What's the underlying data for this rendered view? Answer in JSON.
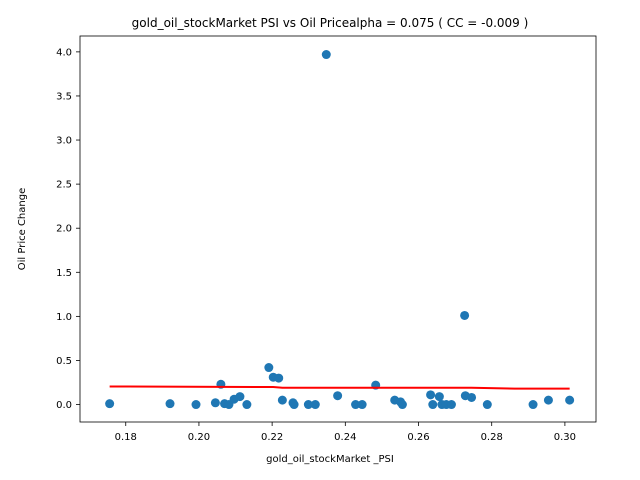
{
  "chart_data": {
    "type": "scatter",
    "title": "gold_oil_stockMarket  PSI vs Oil Pricealpha = 0.075 ( CC = -0.009 )",
    "xlabel": "gold_oil_stockMarket _PSI",
    "ylabel": "Oil Price Change",
    "xlim": [
      0.1675,
      0.3085
    ],
    "ylim": [
      -0.198,
      4.18
    ],
    "xticks": [
      "0.18",
      "0.20",
      "0.22",
      "0.24",
      "0.26",
      "0.28",
      "0.30"
    ],
    "xtick_values": [
      0.18,
      0.2,
      0.22,
      0.24,
      0.26,
      0.28,
      0.3
    ],
    "yticks": [
      "0.0",
      "0.5",
      "1.0",
      "1.5",
      "2.0",
      "2.5",
      "3.0",
      "3.5",
      "4.0"
    ],
    "ytick_values": [
      0.0,
      0.5,
      1.0,
      1.5,
      2.0,
      2.5,
      3.0,
      3.5,
      4.0
    ],
    "grid": false,
    "colors": {
      "points": "#1f77b4",
      "fit_line": "#ff0000"
    },
    "series": [
      {
        "points": [
          [
            0.1756,
            0.01
          ],
          [
            0.1921,
            0.01
          ],
          [
            0.1992,
            0.0
          ],
          [
            0.2045,
            0.02
          ],
          [
            0.206,
            0.23
          ],
          [
            0.207,
            0.01
          ],
          [
            0.2082,
            0.0
          ],
          [
            0.2096,
            0.06
          ],
          [
            0.2112,
            0.09
          ],
          [
            0.2131,
            0.0
          ],
          [
            0.2191,
            0.42
          ],
          [
            0.2203,
            0.31
          ],
          [
            0.2218,
            0.3
          ],
          [
            0.2228,
            0.05
          ],
          [
            0.2257,
            0.02
          ],
          [
            0.226,
            0.0
          ],
          [
            0.2299,
            0.0
          ],
          [
            0.2318,
            0.0
          ],
          [
            0.2348,
            3.97
          ],
          [
            0.2379,
            0.1
          ],
          [
            0.2428,
            0.0
          ],
          [
            0.2446,
            0.0
          ],
          [
            0.2483,
            0.22
          ],
          [
            0.2535,
            0.05
          ],
          [
            0.2551,
            0.03
          ],
          [
            0.2556,
            0.0
          ],
          [
            0.2633,
            0.11
          ],
          [
            0.2639,
            0.0
          ],
          [
            0.2657,
            0.09
          ],
          [
            0.2664,
            0.0
          ],
          [
            0.2676,
            0.0
          ],
          [
            0.269,
            0.0
          ],
          [
            0.2726,
            1.01
          ],
          [
            0.2728,
            0.1
          ],
          [
            0.2745,
            0.08
          ],
          [
            0.2788,
            0.0
          ],
          [
            0.2913,
            0.0
          ],
          [
            0.2955,
            0.05
          ],
          [
            0.3013,
            0.05
          ]
        ]
      }
    ],
    "fit_line": [
      [
        0.1756,
        0.205
      ],
      [
        0.2203,
        0.199
      ],
      [
        0.2228,
        0.19
      ],
      [
        0.2633,
        0.19
      ],
      [
        0.2745,
        0.19
      ],
      [
        0.2863,
        0.18
      ],
      [
        0.3013,
        0.18
      ]
    ]
  }
}
